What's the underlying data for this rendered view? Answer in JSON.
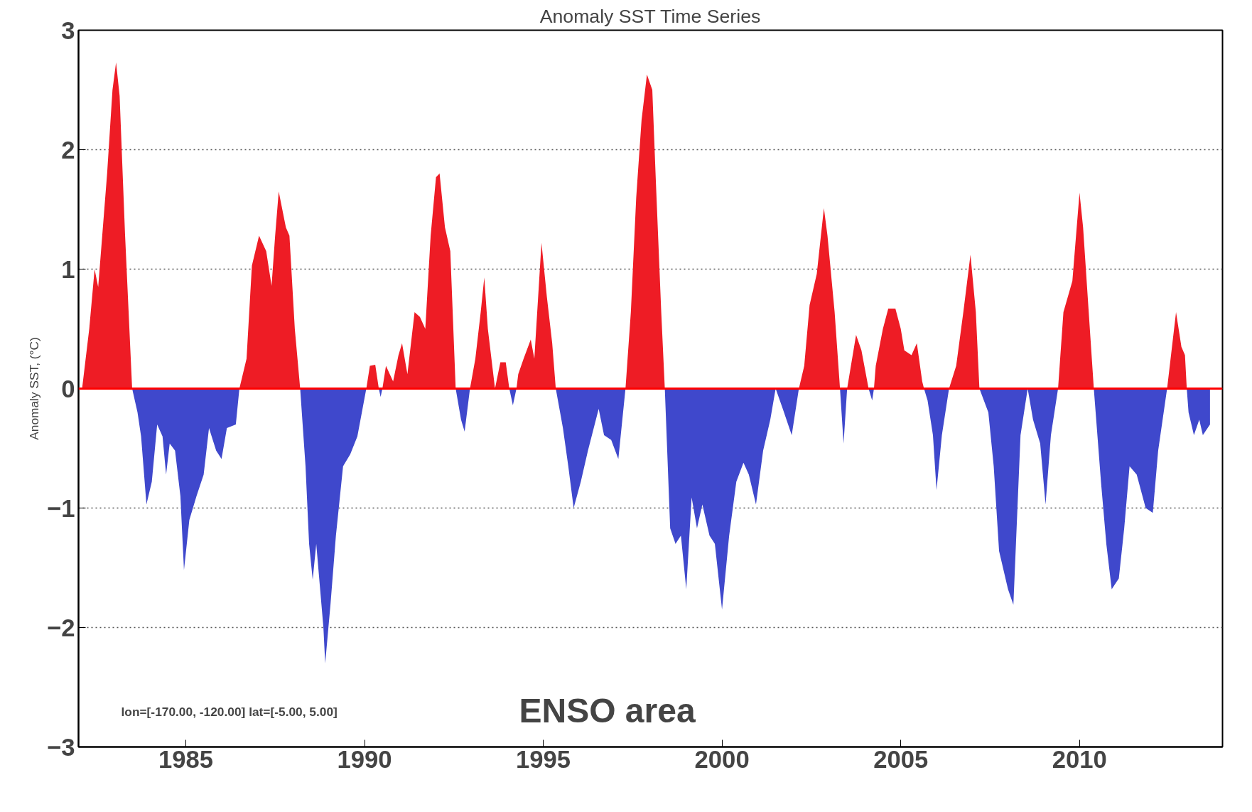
{
  "chart_data": {
    "type": "area",
    "title": "Anomaly SST Time Series",
    "ylabel": "Anomaly SST, (°C)",
    "xlim": [
      1982,
      2014
    ],
    "xticks": [
      1985,
      1990,
      1995,
      2000,
      2005,
      2010
    ],
    "ylim": [
      -3,
      3
    ],
    "yticks": [
      -3,
      -2,
      -1,
      0,
      1,
      2,
      3
    ],
    "grid": "y",
    "line_style": "dotted",
    "ref_lines": [
      {
        "axis": "y",
        "value": 0,
        "color": "#ff0000"
      }
    ],
    "annotations": [
      "lon=[-170.00, -120.00] lat=[-5.00, 5.00]",
      "ENSO area"
    ],
    "series": [
      {
        "color": "#ee1c25",
        "x": [
          1982.1,
          1982.3,
          1982.45,
          1982.55,
          1982.8,
          1982.95,
          1983.05,
          1983.15,
          1983.3,
          1983.5,
          1986.5,
          1986.7,
          1986.85,
          1987.05,
          1987.25,
          1987.4,
          1987.5,
          1987.6,
          1987.8,
          1987.9,
          1988.05,
          1988.2,
          1990.05,
          1990.15,
          1990.3,
          1990.4,
          1990.5,
          1990.6,
          1990.8,
          1990.95,
          1991.05,
          1991.2,
          1991.4,
          1991.55,
          1991.7,
          1991.85,
          1992.0,
          1992.1,
          1992.25,
          1992.4,
          1992.55,
          1992.95,
          1993.1,
          1993.25,
          1993.35,
          1993.45,
          1993.65,
          1993.8,
          1993.95,
          1994.05,
          1994.25,
          1994.3,
          1994.45,
          1994.65,
          1994.75,
          1994.95,
          1995.1,
          1995.25,
          1995.35,
          1997.3,
          1997.45,
          1997.6,
          1997.75,
          1997.9,
          1998.05,
          1998.15,
          1998.3,
          1998.4,
          2002.15,
          2002.3,
          2002.45,
          2002.65,
          2002.85,
          2002.95,
          2003.15,
          2003.3,
          2003.5,
          2003.75,
          2003.9,
          2004.1,
          2004.25,
          2004.3,
          2004.5,
          2004.65,
          2004.85,
          2005.0,
          2005.1,
          2005.3,
          2005.45,
          2005.6,
          2005.65,
          2006.35,
          2006.55,
          2006.75,
          2006.95,
          2007.1,
          2007.2,
          2009.4,
          2009.55,
          2009.8,
          2010.0,
          2010.1,
          2010.4,
          2012.45,
          2012.7,
          2012.85,
          2012.95,
          2013.0
        ],
        "values": [
          0,
          0.5,
          1.0,
          0.85,
          1.8,
          2.5,
          2.73,
          2.45,
          1.3,
          0,
          0,
          0.25,
          1.03,
          1.28,
          1.15,
          0.86,
          1.28,
          1.65,
          1.35,
          1.28,
          0.5,
          0,
          0,
          0.19,
          0.2,
          0,
          0,
          0.19,
          0.06,
          0.28,
          0.38,
          0.12,
          0.64,
          0.6,
          0.5,
          1.28,
          1.77,
          1.8,
          1.35,
          1.15,
          0,
          0,
          0.25,
          0.64,
          0.93,
          0.5,
          0,
          0.22,
          0.22,
          0,
          0,
          0.12,
          0.25,
          0.41,
          0.25,
          1.22,
          0.77,
          0.38,
          0,
          0,
          0.64,
          1.6,
          2.25,
          2.63,
          2.5,
          1.73,
          0.64,
          0,
          0,
          0.19,
          0.7,
          0.96,
          1.51,
          1.28,
          0.64,
          0,
          0,
          0.45,
          0.32,
          0,
          0,
          0.19,
          0.5,
          0.67,
          0.67,
          0.5,
          0.32,
          0.28,
          0.38,
          0.06,
          0,
          0,
          0.19,
          0.64,
          1.12,
          0.64,
          0,
          0,
          0.64,
          0.9,
          1.64,
          1.35,
          0,
          0,
          0.64,
          0.35,
          0.28,
          0
        ]
      },
      {
        "color": "#3f48cc",
        "x": [
          1983.5,
          1983.65,
          1983.75,
          1983.9,
          1984.05,
          1984.2,
          1984.35,
          1984.45,
          1984.55,
          1984.7,
          1984.85,
          1984.95,
          1985.1,
          1985.3,
          1985.5,
          1985.65,
          1985.85,
          1986.0,
          1986.15,
          1986.4,
          1986.5,
          1988.2,
          1988.35,
          1988.45,
          1988.55,
          1988.65,
          1988.85,
          1988.9,
          1989.05,
          1989.2,
          1989.4,
          1989.6,
          1989.8,
          1990.05,
          1990.4,
          1990.45,
          1990.5,
          1992.55,
          1992.7,
          1992.8,
          1992.95,
          1994.05,
          1994.15,
          1994.25,
          1995.35,
          1995.55,
          1995.7,
          1995.85,
          1996.05,
          1996.25,
          1996.55,
          1996.7,
          1996.9,
          1997.1,
          1997.3,
          1998.4,
          1998.55,
          1998.7,
          1998.85,
          1999.0,
          1999.15,
          1999.3,
          1999.45,
          1999.65,
          1999.8,
          2000.0,
          2000.2,
          2000.4,
          2000.6,
          2000.75,
          2000.95,
          2001.15,
          2001.35,
          2001.5,
          2001.7,
          2001.95,
          2002.15,
          2003.3,
          2003.4,
          2003.5,
          2004.1,
          2004.2,
          2004.25,
          2005.65,
          2005.75,
          2005.9,
          2006.0,
          2006.15,
          2006.35,
          2007.2,
          2007.45,
          2007.6,
          2007.75,
          2008.0,
          2008.15,
          2008.35,
          2008.55,
          2008.7,
          2008.9,
          2009.05,
          2009.2,
          2009.4,
          2010.4,
          2010.6,
          2010.75,
          2010.9,
          2011.1,
          2011.25,
          2011.4,
          2011.6,
          2011.85,
          2012.05,
          2012.2,
          2012.45,
          2013.0,
          2013.05,
          2013.2,
          2013.35,
          2013.45,
          2013.65
        ],
        "values": [
          0,
          -0.2,
          -0.4,
          -0.97,
          -0.78,
          -0.3,
          -0.4,
          -0.72,
          -0.46,
          -0.52,
          -0.9,
          -1.52,
          -1.1,
          -0.9,
          -0.72,
          -0.33,
          -0.52,
          -0.59,
          -0.33,
          -0.3,
          0,
          0,
          -0.65,
          -1.3,
          -1.6,
          -1.3,
          -2.0,
          -2.3,
          -1.8,
          -1.23,
          -0.65,
          -0.55,
          -0.4,
          0,
          0,
          -0.07,
          0,
          0,
          -0.26,
          -0.36,
          0,
          0,
          -0.14,
          0,
          0,
          -0.33,
          -0.65,
          -1.0,
          -0.78,
          -0.52,
          -0.17,
          -0.39,
          -0.43,
          -0.59,
          0,
          0,
          -1.17,
          -1.3,
          -1.23,
          -1.68,
          -0.91,
          -1.17,
          -0.97,
          -1.23,
          -1.3,
          -1.85,
          -1.23,
          -0.78,
          -0.62,
          -0.72,
          -0.97,
          -0.52,
          -0.26,
          0,
          -0.17,
          -0.39,
          0,
          0,
          -0.46,
          0,
          0,
          -0.1,
          0,
          0,
          -0.1,
          -0.39,
          -0.85,
          -0.39,
          0,
          0,
          -0.2,
          -0.65,
          -1.36,
          -1.68,
          -1.81,
          -0.39,
          0,
          -0.26,
          -0.46,
          -0.97,
          -0.39,
          0,
          0,
          -0.78,
          -1.3,
          -1.68,
          -1.59,
          -1.17,
          -0.65,
          -0.72,
          -1.0,
          -1.04,
          -0.52,
          0,
          0,
          -0.2,
          -0.39,
          -0.26,
          -0.39,
          -0.3
        ]
      }
    ]
  }
}
